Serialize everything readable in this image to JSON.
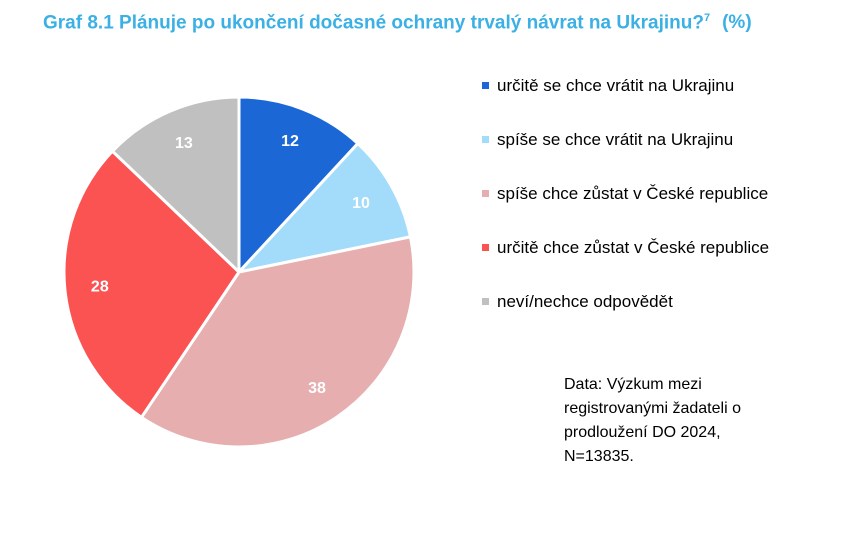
{
  "title": {
    "text": "Graf 8.1 Plánuje po ukončení dočasné ochrany trvalý návrat na Ukrajinu?",
    "footnote": "7",
    "unit": "(%)"
  },
  "chart_data": {
    "type": "pie",
    "title": "Graf 8.1 Plánuje po ukončení dočasné ochrany trvalý návrat na Ukrajinu? (%)",
    "categories": [
      "určitě se chce vrátit na Ukrajinu",
      "spíše se chce vrátit na Ukrajinu",
      "spíše chce zůstat v České republice",
      "určitě chce zůstat v České republice",
      "neví/nechce odpovědět"
    ],
    "values": [
      12,
      10,
      38,
      28,
      13
    ],
    "colors": [
      "#1b67d6",
      "#a3dcfb",
      "#e6aeae",
      "#fb5252",
      "#c0c0c0"
    ],
    "legend_position": "right",
    "start": "top, clockwise"
  },
  "source": {
    "lines": [
      "Data: Výzkum mezi",
      "registrovanými žadateli o",
      "prodloužení DO 2024,",
      "N=13835."
    ]
  }
}
